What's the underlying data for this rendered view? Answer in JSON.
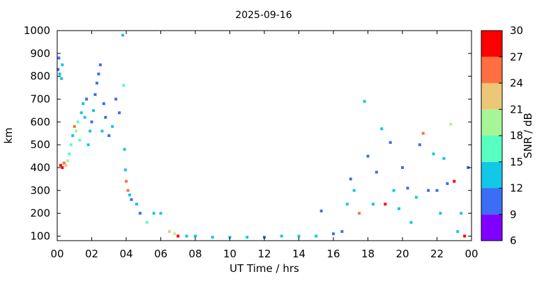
{
  "chart_data": {
    "type": "heatmap",
    "title": "2025-09-16",
    "xlabel": "UT Time / hrs",
    "ylabel": "km",
    "xlim": [
      0,
      24
    ],
    "ylim": [
      80,
      1000
    ],
    "x_ticks": [
      "00",
      "02",
      "04",
      "06",
      "08",
      "10",
      "12",
      "14",
      "16",
      "18",
      "20",
      "22",
      "00"
    ],
    "y_ticks": [
      "100",
      "200",
      "300",
      "400",
      "500",
      "600",
      "700",
      "800",
      "900",
      "1000"
    ],
    "colorbar": {
      "label": "SNR / dB",
      "ticks": [
        "6",
        "9",
        "12",
        "15",
        "18",
        "21",
        "24",
        "27",
        "30"
      ],
      "range": [
        6,
        30
      ],
      "bands": [
        {
          "min": 6,
          "max": 9,
          "color": "#7f00ff"
        },
        {
          "min": 9,
          "max": 12,
          "color": "#3b6ef5"
        },
        {
          "min": 12,
          "max": 15,
          "color": "#12c8e6"
        },
        {
          "min": 15,
          "max": 18,
          "color": "#57ffc0"
        },
        {
          "min": 18,
          "max": 21,
          "color": "#a6f596"
        },
        {
          "min": 21,
          "max": 24,
          "color": "#ecc775"
        },
        {
          "min": 24,
          "max": 27,
          "color": "#ff6f41"
        },
        {
          "min": 27,
          "max": 30,
          "color": "#ff0000"
        }
      ]
    },
    "points": [
      {
        "x": 0.05,
        "y": 830,
        "v": 11
      },
      {
        "x": 0.15,
        "y": 810,
        "v": 13
      },
      {
        "x": 0.25,
        "y": 790,
        "v": 12
      },
      {
        "x": 0.3,
        "y": 850,
        "v": 14
      },
      {
        "x": 0.1,
        "y": 880,
        "v": 10
      },
      {
        "x": 0.2,
        "y": 410,
        "v": 28
      },
      {
        "x": 0.3,
        "y": 400,
        "v": 27
      },
      {
        "x": 0.4,
        "y": 420,
        "v": 26
      },
      {
        "x": 0.5,
        "y": 410,
        "v": 22
      },
      {
        "x": 0.6,
        "y": 430,
        "v": 18
      },
      {
        "x": 0.7,
        "y": 460,
        "v": 15
      },
      {
        "x": 0.8,
        "y": 500,
        "v": 16
      },
      {
        "x": 0.9,
        "y": 540,
        "v": 14
      },
      {
        "x": 1.0,
        "y": 580,
        "v": 25
      },
      {
        "x": 1.1,
        "y": 560,
        "v": 20
      },
      {
        "x": 1.2,
        "y": 600,
        "v": 17
      },
      {
        "x": 1.3,
        "y": 520,
        "v": 16
      },
      {
        "x": 1.4,
        "y": 640,
        "v": 13
      },
      {
        "x": 1.5,
        "y": 680,
        "v": 12
      },
      {
        "x": 1.6,
        "y": 620,
        "v": 14
      },
      {
        "x": 1.7,
        "y": 700,
        "v": 11
      },
      {
        "x": 1.8,
        "y": 500,
        "v": 12
      },
      {
        "x": 1.9,
        "y": 560,
        "v": 13
      },
      {
        "x": 2.0,
        "y": 600,
        "v": 11
      },
      {
        "x": 2.1,
        "y": 650,
        "v": 12
      },
      {
        "x": 2.2,
        "y": 720,
        "v": 10
      },
      {
        "x": 2.3,
        "y": 770,
        "v": 11
      },
      {
        "x": 2.4,
        "y": 810,
        "v": 10
      },
      {
        "x": 2.5,
        "y": 850,
        "v": 10
      },
      {
        "x": 2.6,
        "y": 560,
        "v": 12
      },
      {
        "x": 2.7,
        "y": 680,
        "v": 11
      },
      {
        "x": 2.8,
        "y": 620,
        "v": 10
      },
      {
        "x": 3.0,
        "y": 540,
        "v": 11
      },
      {
        "x": 3.2,
        "y": 580,
        "v": 12
      },
      {
        "x": 3.4,
        "y": 700,
        "v": 10
      },
      {
        "x": 3.6,
        "y": 640,
        "v": 11
      },
      {
        "x": 3.8,
        "y": 980,
        "v": 12
      },
      {
        "x": 3.85,
        "y": 760,
        "v": 16
      },
      {
        "x": 3.9,
        "y": 480,
        "v": 13
      },
      {
        "x": 3.95,
        "y": 390,
        "v": 12
      },
      {
        "x": 4.0,
        "y": 340,
        "v": 26
      },
      {
        "x": 4.1,
        "y": 300,
        "v": 24
      },
      {
        "x": 4.2,
        "y": 280,
        "v": 14
      },
      {
        "x": 4.3,
        "y": 260,
        "v": 11
      },
      {
        "x": 4.6,
        "y": 240,
        "v": 12
      },
      {
        "x": 4.8,
        "y": 200,
        "v": 11
      },
      {
        "x": 5.2,
        "y": 160,
        "v": 15
      },
      {
        "x": 5.6,
        "y": 200,
        "v": 13
      },
      {
        "x": 6.0,
        "y": 200,
        "v": 14
      },
      {
        "x": 6.5,
        "y": 120,
        "v": 22
      },
      {
        "x": 6.8,
        "y": 110,
        "v": 18
      },
      {
        "x": 7.0,
        "y": 100,
        "v": 27
      },
      {
        "x": 7.5,
        "y": 100,
        "v": 14
      },
      {
        "x": 8.0,
        "y": 100,
        "v": 12
      },
      {
        "x": 9.0,
        "y": 95,
        "v": 13
      },
      {
        "x": 10.0,
        "y": 95,
        "v": 12
      },
      {
        "x": 11.0,
        "y": 95,
        "v": 13
      },
      {
        "x": 12.0,
        "y": 95,
        "v": 11
      },
      {
        "x": 13.0,
        "y": 100,
        "v": 12
      },
      {
        "x": 14.0,
        "y": 100,
        "v": 13
      },
      {
        "x": 15.0,
        "y": 100,
        "v": 12
      },
      {
        "x": 15.3,
        "y": 210,
        "v": 10
      },
      {
        "x": 16.0,
        "y": 110,
        "v": 11
      },
      {
        "x": 16.5,
        "y": 120,
        "v": 10
      },
      {
        "x": 16.8,
        "y": 240,
        "v": 12
      },
      {
        "x": 17.0,
        "y": 350,
        "v": 11
      },
      {
        "x": 17.2,
        "y": 300,
        "v": 14
      },
      {
        "x": 17.5,
        "y": 200,
        "v": 26
      },
      {
        "x": 17.8,
        "y": 690,
        "v": 12
      },
      {
        "x": 18.0,
        "y": 450,
        "v": 10
      },
      {
        "x": 18.3,
        "y": 240,
        "v": 13
      },
      {
        "x": 18.5,
        "y": 380,
        "v": 11
      },
      {
        "x": 18.8,
        "y": 570,
        "v": 12
      },
      {
        "x": 19.0,
        "y": 240,
        "v": 28
      },
      {
        "x": 19.3,
        "y": 510,
        "v": 10
      },
      {
        "x": 19.5,
        "y": 300,
        "v": 14
      },
      {
        "x": 19.8,
        "y": 220,
        "v": 12
      },
      {
        "x": 20.0,
        "y": 400,
        "v": 10
      },
      {
        "x": 20.3,
        "y": 310,
        "v": 11
      },
      {
        "x": 20.5,
        "y": 160,
        "v": 12
      },
      {
        "x": 20.8,
        "y": 270,
        "v": 13
      },
      {
        "x": 21.0,
        "y": 500,
        "v": 10
      },
      {
        "x": 21.2,
        "y": 550,
        "v": 24
      },
      {
        "x": 21.5,
        "y": 300,
        "v": 11
      },
      {
        "x": 21.8,
        "y": 460,
        "v": 12
      },
      {
        "x": 22.0,
        "y": 300,
        "v": 10
      },
      {
        "x": 22.2,
        "y": 200,
        "v": 12
      },
      {
        "x": 22.4,
        "y": 440,
        "v": 13
      },
      {
        "x": 22.6,
        "y": 330,
        "v": 11
      },
      {
        "x": 22.8,
        "y": 590,
        "v": 20
      },
      {
        "x": 23.0,
        "y": 340,
        "v": 27
      },
      {
        "x": 23.2,
        "y": 120,
        "v": 13
      },
      {
        "x": 23.4,
        "y": 200,
        "v": 12
      },
      {
        "x": 23.6,
        "y": 100,
        "v": 28
      },
      {
        "x": 23.8,
        "y": 400,
        "v": 11
      }
    ]
  }
}
